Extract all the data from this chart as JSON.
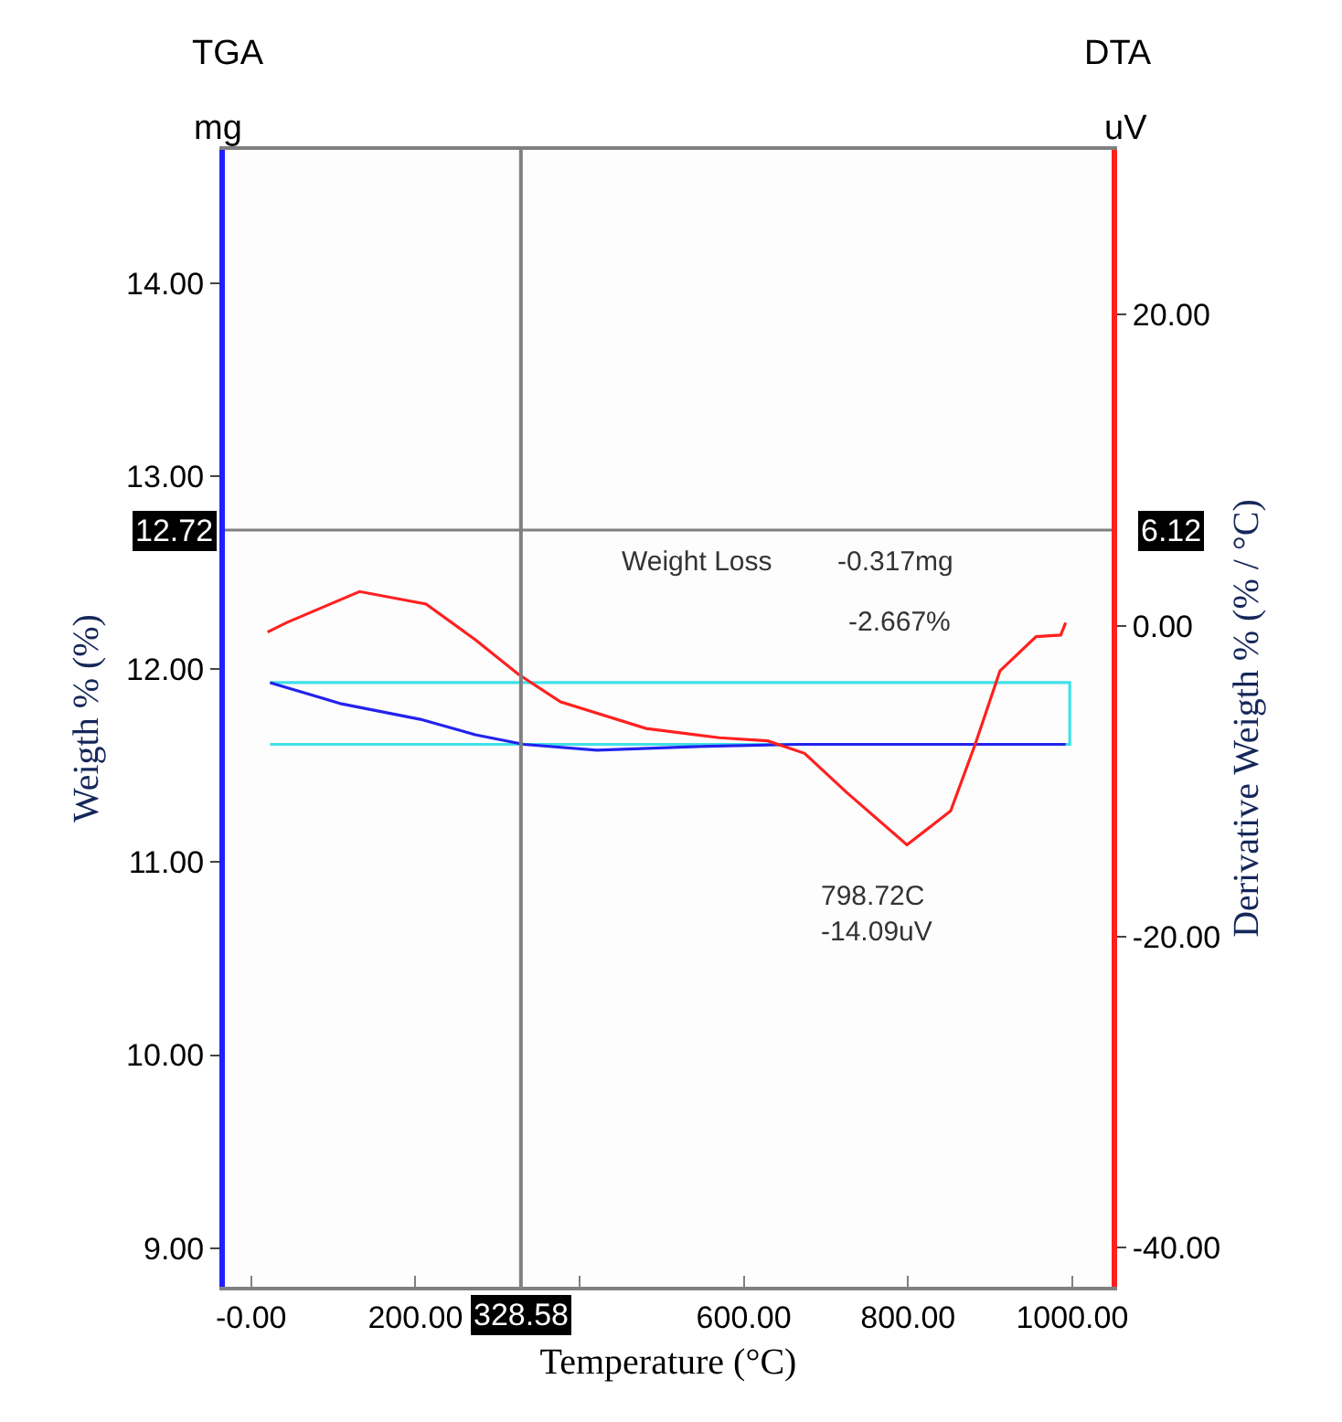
{
  "chart_data": {
    "type": "line",
    "xlabel": "Temperature (°C)",
    "ylabel": "Weigth % (%)",
    "y2label": "Derivative Weigth % (% / °C)",
    "annotations": [
      "TGA",
      "mg",
      "DTA",
      "uV",
      "Weight Loss",
      "-0.317mg",
      "-2.667%",
      "798.72C\n-14.09uV",
      "6.12"
    ],
    "series": [
      {
        "color": "#40e0e8",
        "x": [
          23,
          997,
          997,
          23
        ],
        "values": [
          11.93,
          11.93,
          11.61,
          11.61
        ]
      },
      {
        "color": "#2222ee",
        "x": [
          23,
          110,
          206,
          273,
          332,
          421,
          555,
          667,
          778,
          863,
          992
        ],
        "values": [
          11.93,
          11.82,
          11.74,
          11.66,
          11.61,
          11.58,
          11.6,
          11.61,
          11.61,
          11.61,
          11.61
        ]
      },
      {
        "color": "#ff2020",
        "axis": "y2",
        "x": [
          20,
          43,
          132,
          213,
          273,
          325,
          377,
          481,
          570,
          629,
          674,
          725,
          798.72,
          852,
          882,
          912,
          956,
          986,
          992
        ],
        "values": [
          -0.4,
          0.2,
          2.2,
          1.4,
          -0.9,
          -3.1,
          -4.9,
          -6.6,
          -7.2,
          -7.4,
          -8.2,
          -10.7,
          -14.09,
          -11.9,
          -7.6,
          -2.9,
          -0.7,
          -0.6,
          0.2
        ]
      }
    ],
    "xlim": [
      -32,
      1048
    ],
    "xticks": [
      {
        "value": 0,
        "label": "-0.00"
      },
      {
        "value": 200,
        "label": "200.00"
      },
      {
        "value": 400,
        "label": null
      },
      {
        "value": 600,
        "label": "600.00"
      },
      {
        "value": 800,
        "label": "800.00"
      },
      {
        "value": 1000,
        "label": "1000.00"
      }
    ],
    "ylim": [
      8.8,
      14.69
    ],
    "yticks": [
      {
        "value": 9,
        "label": "9.00"
      },
      {
        "value": 10,
        "label": "10.00"
      },
      {
        "value": 11,
        "label": "11.00"
      },
      {
        "value": 12,
        "label": "12.00"
      },
      {
        "value": 13,
        "label": "13.00"
      },
      {
        "value": 14,
        "label": "14.00"
      }
    ],
    "y2lim": [
      -42.5,
      30.6
    ],
    "y2ticks": [
      {
        "value": -40,
        "label": "-40.00"
      },
      {
        "value": -20,
        "label": "-20.00"
      },
      {
        "value": 0,
        "label": "0.00"
      },
      {
        "value": 20,
        "label": "20.00"
      }
    ],
    "ref_lines": [
      {
        "axis": "x",
        "value": 328.58,
        "label": "328.58",
        "color": "#808080"
      },
      {
        "axis": "y",
        "value": 12.72,
        "label": "12.72",
        "color": "#808080"
      }
    ],
    "grid": false,
    "marker": "none",
    "line_style": "solid"
  }
}
